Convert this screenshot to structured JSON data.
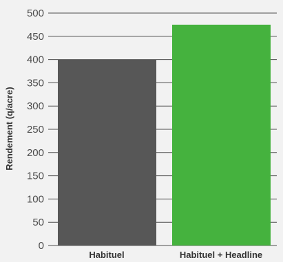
{
  "chart_data": {
    "type": "bar",
    "title": "",
    "xlabel": "",
    "ylabel": "Rendement (q/acre)",
    "categories": [
      "Habituel",
      "Habituel + Headline"
    ],
    "values": [
      400,
      475
    ],
    "colors": [
      "#575757",
      "#45b23e"
    ],
    "ylim": [
      0,
      500
    ],
    "yticks": [
      "0",
      "50",
      "100",
      "150",
      "200",
      "250",
      "300",
      "350",
      "400",
      "450",
      "500"
    ],
    "grid": true,
    "legend": "none"
  }
}
